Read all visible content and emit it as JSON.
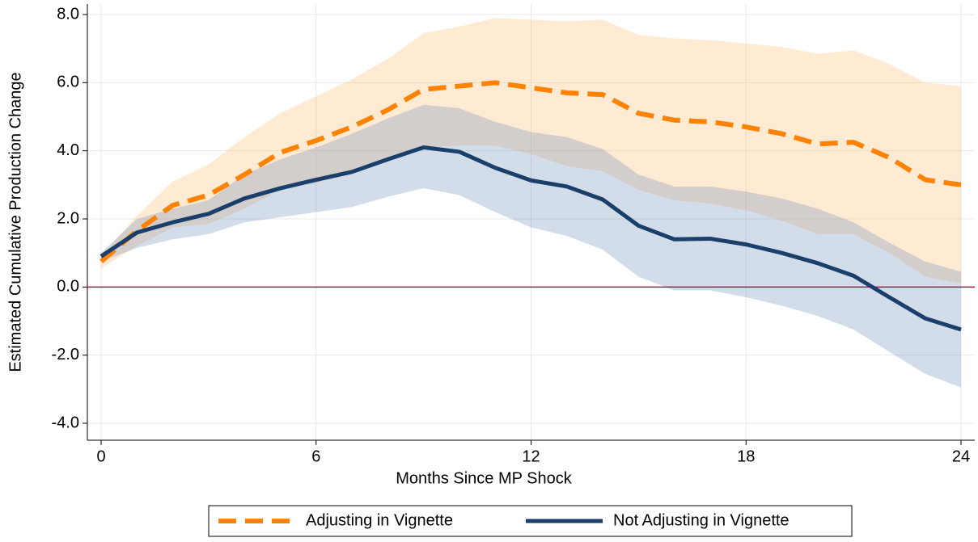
{
  "chart_data": {
    "type": "line",
    "xlabel": "Months Since MP Shock",
    "ylabel": "Estimated Cumulative Production Change",
    "x": [
      0,
      1,
      2,
      3,
      4,
      5,
      6,
      7,
      8,
      9,
      10,
      11,
      12,
      13,
      14,
      15,
      16,
      17,
      18,
      19,
      20,
      21,
      22,
      23,
      24
    ],
    "xlim": [
      0,
      24
    ],
    "xticks": [
      0,
      6,
      12,
      18,
      24
    ],
    "ylim": [
      -4,
      8
    ],
    "yticks": [
      {
        "value": -4,
        "label": "-4.0"
      },
      {
        "value": -2,
        "label": "-2.0"
      },
      {
        "value": 0,
        "label": "0.0"
      },
      {
        "value": 2,
        "label": "2.0"
      },
      {
        "value": 4,
        "label": "4.0"
      },
      {
        "value": 6,
        "label": "6.0"
      },
      {
        "value": 8,
        "label": "8.0"
      }
    ],
    "grid": true,
    "hline": {
      "value": 0,
      "color": "#b0154a"
    },
    "legend": "bottom",
    "series": [
      {
        "name": "Adjusting in Vignette",
        "color": "#ff8200",
        "dashed": true,
        "band_color": "#ffb870",
        "values": [
          0.75,
          1.65,
          2.4,
          2.7,
          3.3,
          3.95,
          4.3,
          4.7,
          5.2,
          5.8,
          5.9,
          6.0,
          5.85,
          5.7,
          5.65,
          5.1,
          4.9,
          4.85,
          4.7,
          4.5,
          4.2,
          4.25,
          3.8,
          3.15,
          3.0
        ],
        "upper": [
          0.9,
          2.1,
          3.1,
          3.6,
          4.4,
          5.1,
          5.6,
          6.1,
          6.7,
          7.45,
          7.65,
          7.9,
          7.85,
          7.8,
          7.85,
          7.4,
          7.3,
          7.25,
          7.15,
          7.05,
          6.85,
          6.95,
          6.55,
          6.0,
          5.9
        ],
        "lower": [
          0.55,
          1.2,
          1.75,
          1.85,
          2.3,
          2.85,
          3.05,
          3.35,
          3.75,
          4.1,
          4.15,
          4.15,
          3.9,
          3.55,
          3.4,
          2.85,
          2.55,
          2.45,
          2.25,
          1.95,
          1.55,
          1.55,
          1.0,
          0.3,
          0.1
        ]
      },
      {
        "name": "Not Adjusting in Vignette",
        "color": "#1a3f6b",
        "dashed": false,
        "band_color": "#6d8fb8",
        "values": [
          0.9,
          1.6,
          1.9,
          2.15,
          2.6,
          2.9,
          3.15,
          3.38,
          3.75,
          4.1,
          3.97,
          3.5,
          3.13,
          2.95,
          2.57,
          1.8,
          1.4,
          1.42,
          1.25,
          1.0,
          0.7,
          0.33,
          -0.3,
          -0.92,
          -1.25
        ],
        "upper": [
          1.0,
          2.0,
          2.3,
          2.55,
          3.3,
          3.75,
          4.1,
          4.5,
          4.95,
          5.35,
          5.25,
          4.85,
          4.55,
          4.4,
          4.05,
          3.3,
          2.95,
          2.95,
          2.8,
          2.6,
          2.3,
          1.9,
          1.3,
          0.75,
          0.45
        ],
        "lower": [
          0.75,
          1.15,
          1.4,
          1.55,
          1.9,
          2.05,
          2.2,
          2.35,
          2.65,
          2.9,
          2.7,
          2.2,
          1.75,
          1.5,
          1.1,
          0.3,
          -0.1,
          -0.1,
          -0.3,
          -0.55,
          -0.85,
          -1.25,
          -1.9,
          -2.55,
          -2.95
        ]
      }
    ]
  }
}
